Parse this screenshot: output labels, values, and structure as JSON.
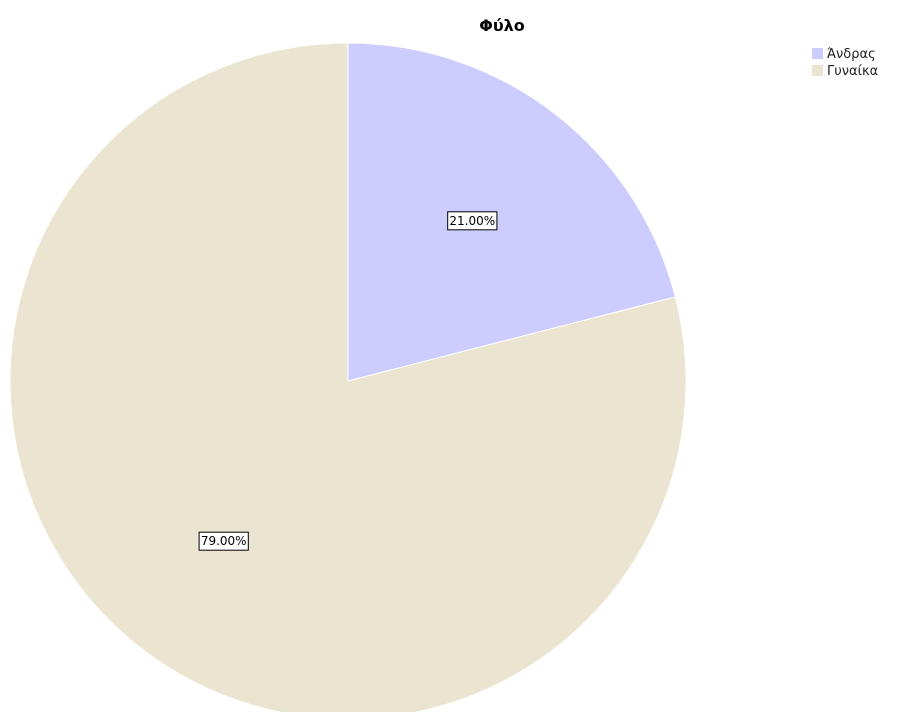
{
  "chart_data": {
    "type": "pie",
    "title": "Φύλο",
    "categories": [
      "Άνδρας",
      "Γυναίκα"
    ],
    "values": [
      21.0,
      79.0
    ],
    "data_labels": [
      "21.00%",
      "79.00%"
    ],
    "colors": [
      "#ccccff",
      "#ebe4d0"
    ],
    "start_angle": "12 o'clock",
    "direction": "clockwise",
    "legend": {
      "position": "top-right",
      "entries": [
        "Άνδρας",
        "Γυναίκα"
      ]
    }
  }
}
